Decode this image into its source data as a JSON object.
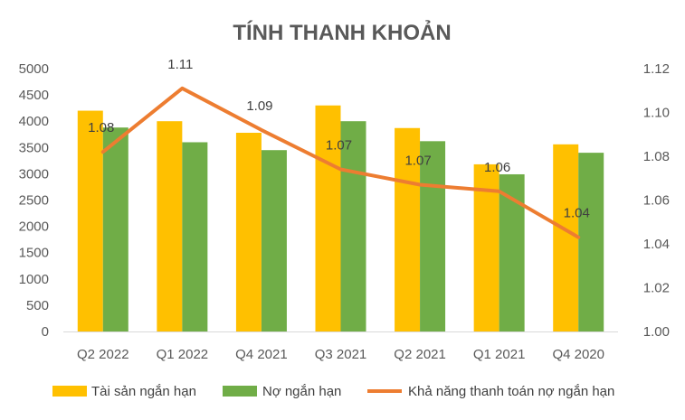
{
  "chart_data": {
    "type": "bar",
    "title": "TÍNH THANH KHOẢN",
    "categories": [
      "Q2 2022",
      "Q1 2022",
      "Q4 2021",
      "Q3 2021",
      "Q2 2021",
      "Q1 2021",
      "Q4 2020"
    ],
    "series": [
      {
        "name": "Tài sản ngắn hạn",
        "type": "bar",
        "axis": "left",
        "color": "#FFC000",
        "values": [
          4200,
          4000,
          3780,
          4300,
          3870,
          3180,
          3560
        ]
      },
      {
        "name": "Nợ ngắn hạn",
        "type": "bar",
        "axis": "left",
        "color": "#70AD47",
        "values": [
          3880,
          3600,
          3450,
          4000,
          3620,
          2990,
          3400
        ]
      },
      {
        "name": "Khả năng thanh toán nợ ngắn hạn",
        "type": "line",
        "axis": "right",
        "color": "#ED7D31",
        "values": [
          1.082,
          1.111,
          1.092,
          1.074,
          1.067,
          1.064,
          1.043
        ],
        "labels": [
          "1.08",
          "1.11",
          "1.09",
          "1.07",
          "1.07",
          "1.06",
          "1.04"
        ]
      }
    ],
    "y_left": {
      "min": 0,
      "max": 5000,
      "step": 500,
      "ticks": [
        "0",
        "500",
        "1000",
        "1500",
        "2000",
        "2500",
        "3000",
        "3500",
        "4000",
        "4500",
        "5000"
      ]
    },
    "y_right": {
      "min": 1.0,
      "max": 1.12,
      "step": 0.02,
      "ticks": [
        "1.00",
        "1.02",
        "1.04",
        "1.06",
        "1.08",
        "1.10",
        "1.12"
      ]
    },
    "grid": false,
    "legend_position": "bottom"
  }
}
